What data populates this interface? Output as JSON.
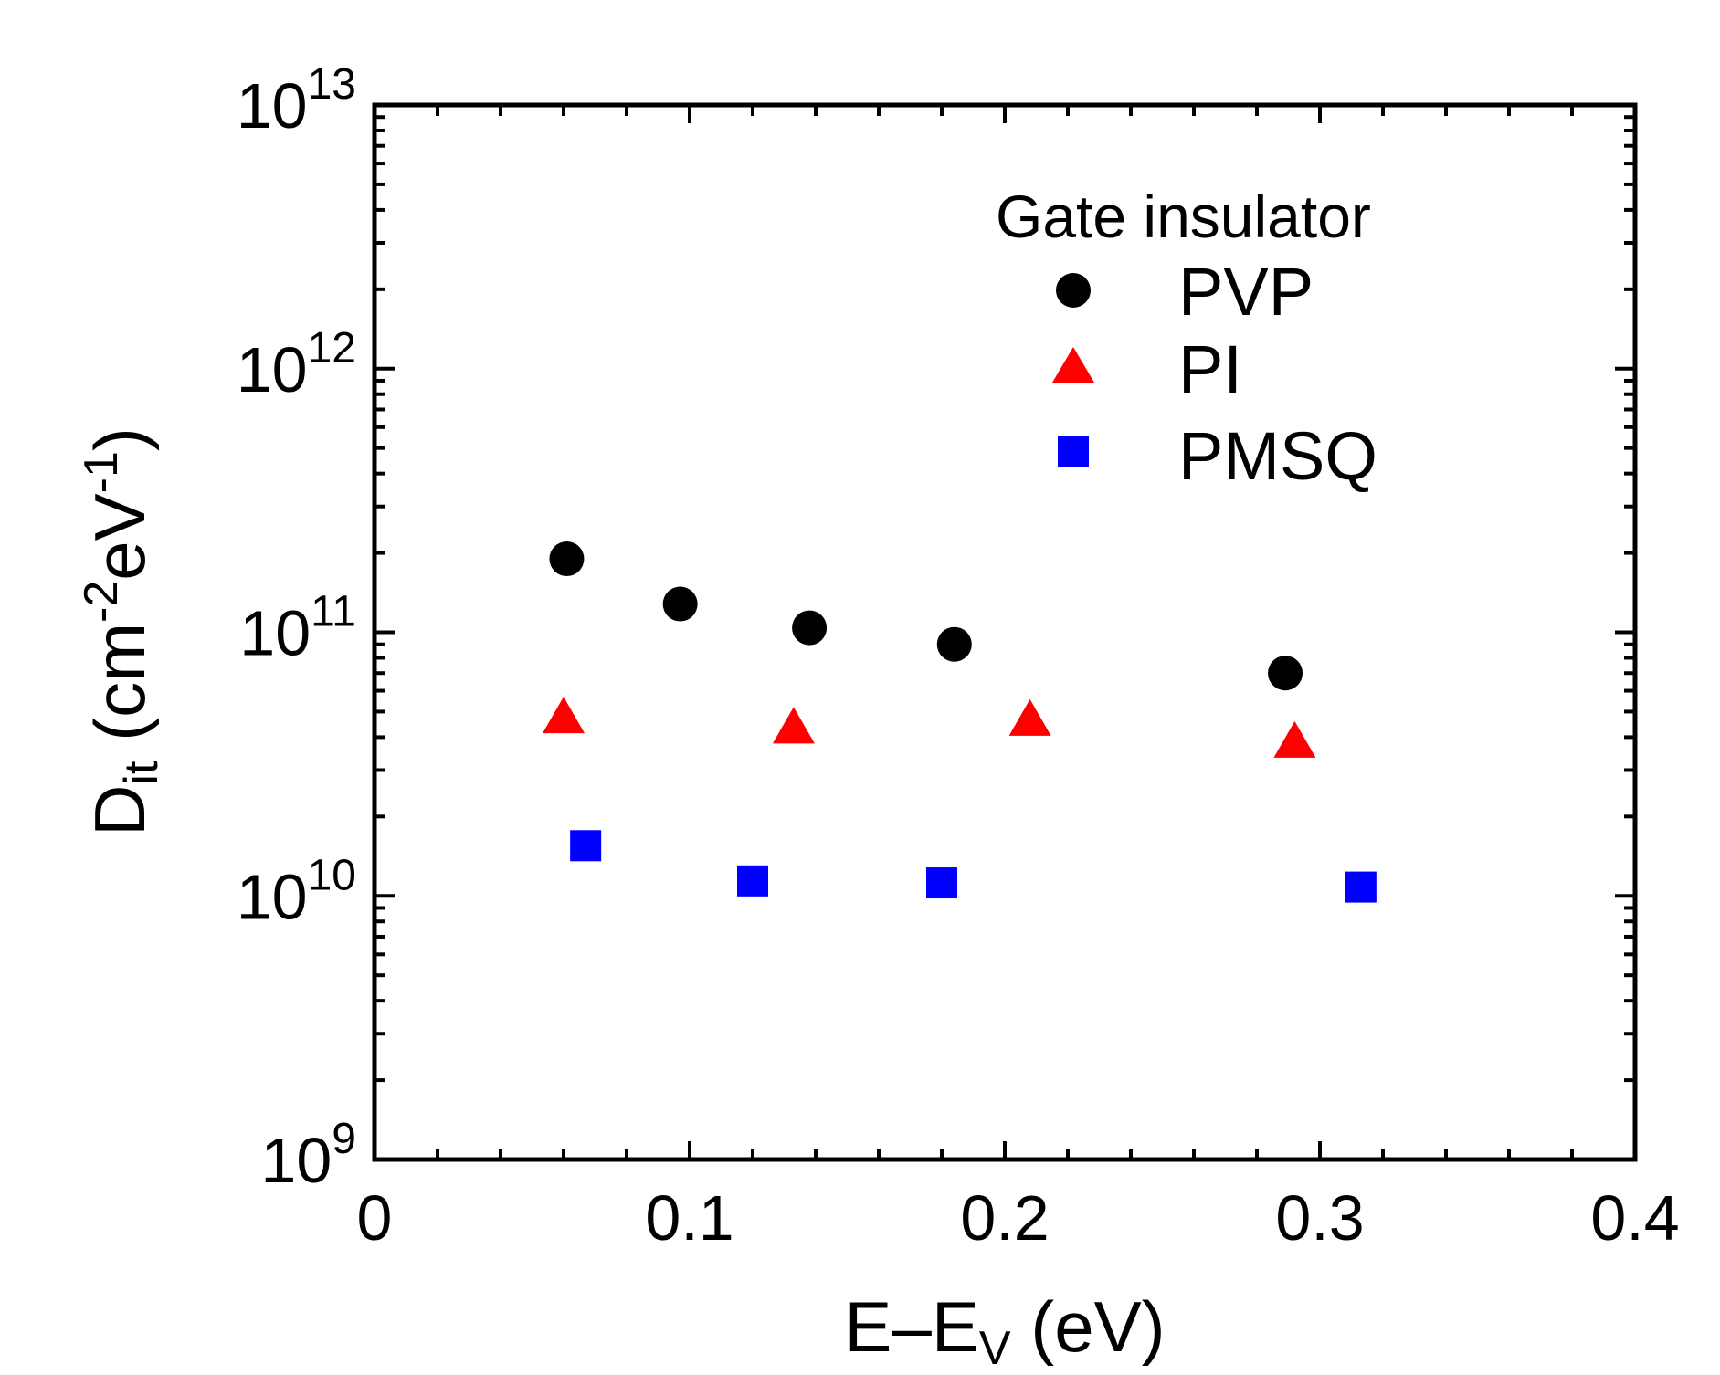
{
  "chart_data": {
    "type": "scatter",
    "title": "",
    "xlabel": {
      "main": "E–E",
      "sub": "V",
      "unit": " (eV)"
    },
    "ylabel": {
      "main": "D",
      "sub": "it",
      "unit_open": " (cm",
      "exp1": "-2",
      "mid": "eV",
      "exp2": "-1",
      "close": ")"
    },
    "xlim": [
      0,
      0.4
    ],
    "ylim": [
      1000000000.0,
      10000000000000.0
    ],
    "yscale": "log",
    "x_ticks": [
      {
        "value": 0,
        "label": "0"
      },
      {
        "value": 0.1,
        "label": "0.1"
      },
      {
        "value": 0.2,
        "label": "0.2"
      },
      {
        "value": 0.3,
        "label": "0.3"
      },
      {
        "value": 0.4,
        "label": "0.4"
      }
    ],
    "y_ticks": [
      {
        "value": 1000000000.0,
        "base": "10",
        "exp": "9"
      },
      {
        "value": 10000000000.0,
        "base": "10",
        "exp": "10"
      },
      {
        "value": 100000000000.0,
        "base": "10",
        "exp": "11"
      },
      {
        "value": 1000000000000.0,
        "base": "10",
        "exp": "12"
      },
      {
        "value": 10000000000000.0,
        "base": "10",
        "exp": "13"
      }
    ],
    "legend": {
      "title": "Gate insulator",
      "position": "top-right"
    },
    "series": [
      {
        "name": "PVP",
        "marker": "circle",
        "color": "#000000",
        "points": [
          {
            "x": 0.061,
            "y": 190000000000.0
          },
          {
            "x": 0.097,
            "y": 128000000000.0
          },
          {
            "x": 0.138,
            "y": 104000000000.0
          },
          {
            "x": 0.184,
            "y": 90000000000.0
          },
          {
            "x": 0.289,
            "y": 70000000000.0
          }
        ]
      },
      {
        "name": "PI",
        "marker": "triangle",
        "color": "#ff0000",
        "points": [
          {
            "x": 0.06,
            "y": 47000000000.0
          },
          {
            "x": 0.133,
            "y": 43000000000.0
          },
          {
            "x": 0.208,
            "y": 46000000000.0
          },
          {
            "x": 0.292,
            "y": 38000000000.0
          }
        ]
      },
      {
        "name": "PMSQ",
        "marker": "square",
        "color": "#0000ff",
        "points": [
          {
            "x": 0.067,
            "y": 15500000000.0
          },
          {
            "x": 0.12,
            "y": 11400000000.0
          },
          {
            "x": 0.18,
            "y": 11200000000.0
          },
          {
            "x": 0.313,
            "y": 10800000000.0
          }
        ]
      }
    ]
  }
}
